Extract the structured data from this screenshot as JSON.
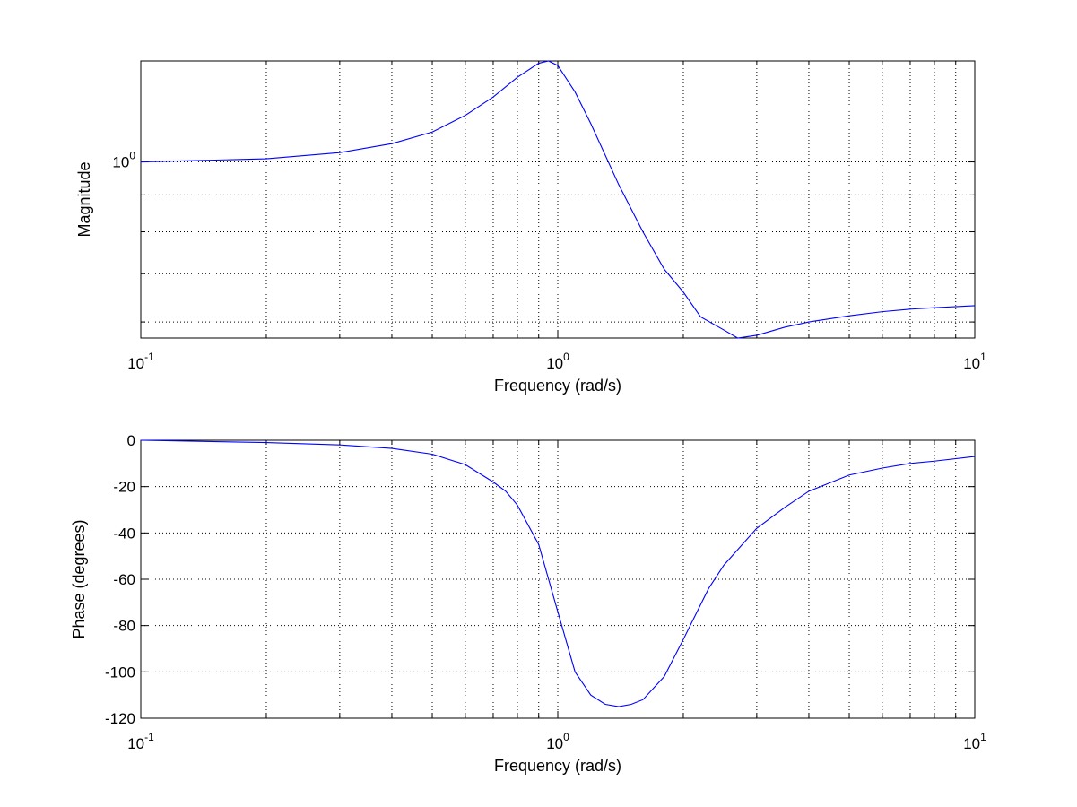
{
  "chart_data": [
    {
      "type": "line",
      "title": "",
      "xlabel": "Frequency (rad/s)",
      "ylabel": "Magnitude",
      "xscale": "log",
      "yscale": "log",
      "xlim": [
        0.1,
        10
      ],
      "ylim": [
        0.57,
        1.38
      ],
      "grid": true,
      "line_color": "#0000ff",
      "x_ticks": [
        {
          "base": "10",
          "exp": "-1",
          "value": 0.1
        },
        {
          "base": "10",
          "exp": "0",
          "value": 1
        },
        {
          "base": "10",
          "exp": "1",
          "value": 10
        }
      ],
      "y_ticks": [
        {
          "base": "10",
          "exp": "0",
          "value": 1
        }
      ],
      "series": [
        {
          "x": [
            0.1,
            0.2,
            0.3,
            0.4,
            0.5,
            0.6,
            0.7,
            0.8,
            0.9,
            0.95,
            1.0,
            1.1,
            1.2,
            1.4,
            1.6,
            1.8,
            2.0,
            2.2,
            2.5,
            2.7,
            3.0,
            3.5,
            4.0,
            5.0,
            6.0,
            7.0,
            8.0,
            10.0
          ],
          "y": [
            1.0,
            1.01,
            1.03,
            1.06,
            1.1,
            1.16,
            1.23,
            1.31,
            1.37,
            1.38,
            1.36,
            1.25,
            1.13,
            0.93,
            0.8,
            0.71,
            0.66,
            0.61,
            0.585,
            0.57,
            0.575,
            0.59,
            0.6,
            0.612,
            0.62,
            0.625,
            0.628,
            0.632
          ]
        }
      ]
    },
    {
      "type": "line",
      "title": "",
      "xlabel": "Frequency (rad/s)",
      "ylabel": "Phase (degrees)",
      "xscale": "log",
      "yscale": "linear",
      "xlim": [
        0.1,
        10
      ],
      "ylim": [
        -120,
        0
      ],
      "grid": true,
      "line_color": "#0000ff",
      "x_ticks": [
        {
          "base": "10",
          "exp": "-1",
          "value": 0.1
        },
        {
          "base": "10",
          "exp": "0",
          "value": 1
        },
        {
          "base": "10",
          "exp": "1",
          "value": 10
        }
      ],
      "y_ticks": [
        0,
        -20,
        -40,
        -60,
        -80,
        -100,
        -120
      ],
      "series": [
        {
          "x": [
            0.1,
            0.2,
            0.3,
            0.4,
            0.5,
            0.6,
            0.7,
            0.75,
            0.8,
            0.9,
            1.0,
            1.1,
            1.2,
            1.3,
            1.4,
            1.5,
            1.6,
            1.8,
            2.0,
            2.3,
            2.5,
            3.0,
            3.5,
            4.0,
            5.0,
            6.0,
            7.0,
            8.0,
            10.0
          ],
          "y": [
            0,
            -1,
            -2,
            -3.5,
            -6,
            -10.5,
            -18,
            -22,
            -28,
            -45,
            -74,
            -100,
            -110,
            -114,
            -115,
            -114,
            -112,
            -102,
            -86,
            -64,
            -54,
            -38,
            -29,
            -22,
            -15,
            -12,
            -10,
            -9,
            -7
          ]
        }
      ]
    }
  ]
}
